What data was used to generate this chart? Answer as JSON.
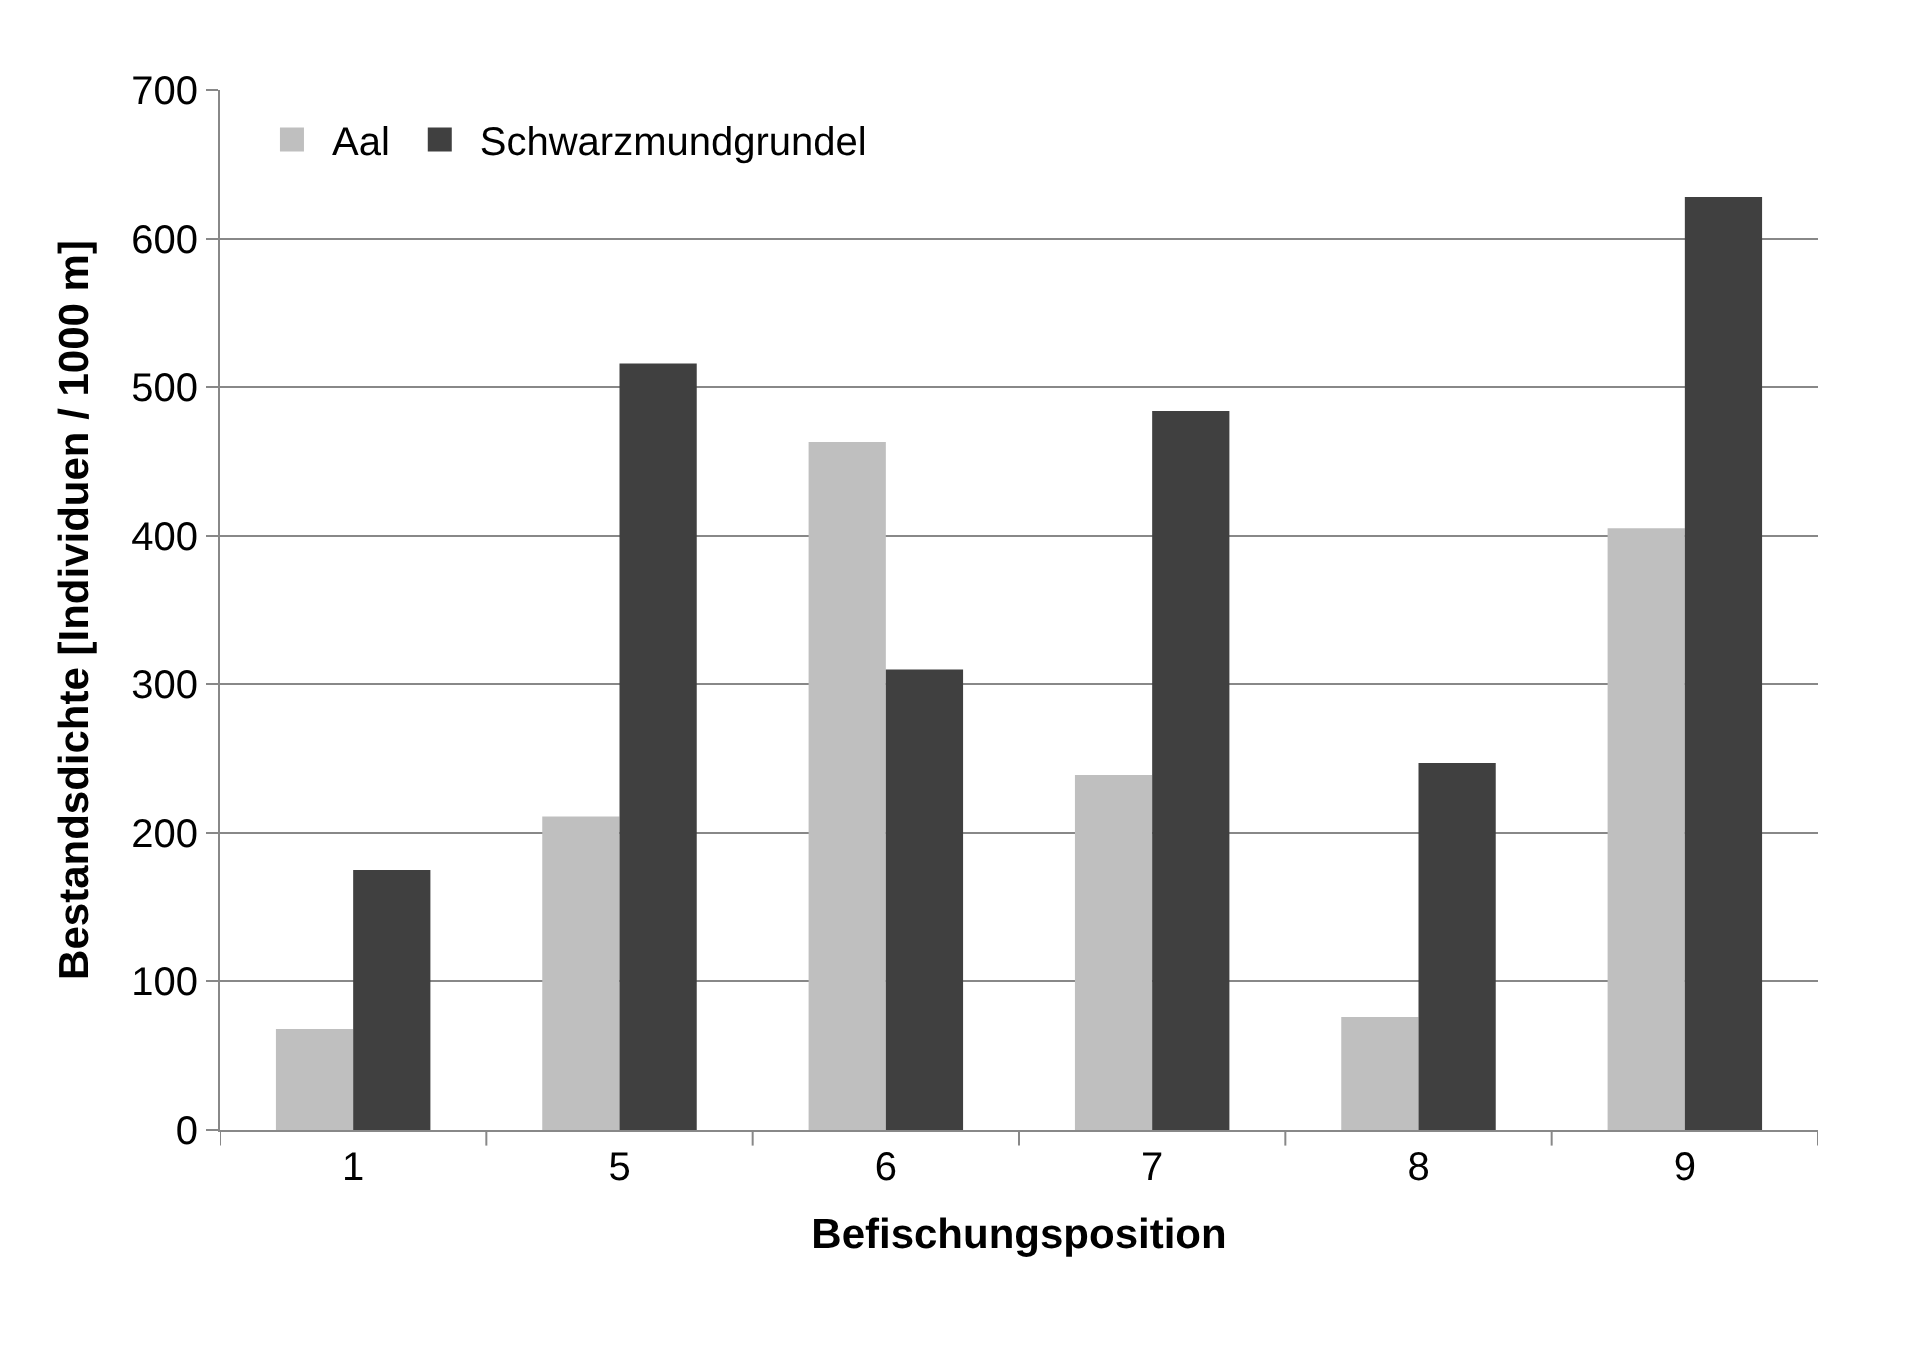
{
  "chart_data": {
    "type": "bar",
    "xlabel": "Befischungsposition",
    "ylabel": "Bestandsdichte [Individuen / 1000 m]",
    "categories": [
      "1",
      "5",
      "6",
      "7",
      "8",
      "9"
    ],
    "series": [
      {
        "name": "Aal",
        "color": "#bfbfbf",
        "values": [
          68,
          211,
          463,
          239,
          76,
          405
        ]
      },
      {
        "name": "Schwarzmundgrundel",
        "color": "#404040",
        "values": [
          175,
          516,
          310,
          484,
          247,
          628
        ]
      }
    ],
    "ylim": [
      0,
      700
    ],
    "yticks": [
      0,
      100,
      200,
      300,
      400,
      500,
      600,
      700
    ],
    "grid": "y",
    "legend": "top left"
  }
}
